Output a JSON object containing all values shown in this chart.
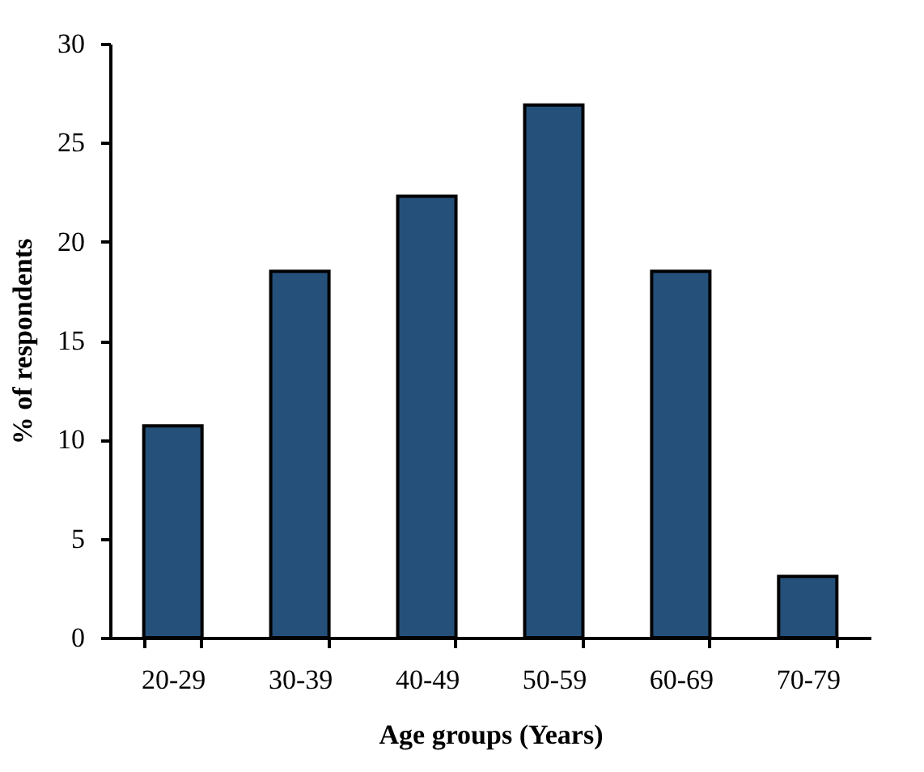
{
  "chart_data": {
    "type": "bar",
    "xlabel": "Age groups  (Years)",
    "ylabel": "% of respondents",
    "categories": [
      "20-29",
      "30-39",
      "40-49",
      "50-59",
      "60-69",
      "70-79"
    ],
    "values": [
      10.7,
      18.5,
      22.3,
      26.9,
      18.5,
      3.1
    ],
    "color": "#24507a",
    "ylim": [
      0,
      30
    ],
    "yticks": [
      0,
      5,
      10,
      15,
      20,
      25,
      30
    ],
    "grid": false,
    "legend": false
  }
}
